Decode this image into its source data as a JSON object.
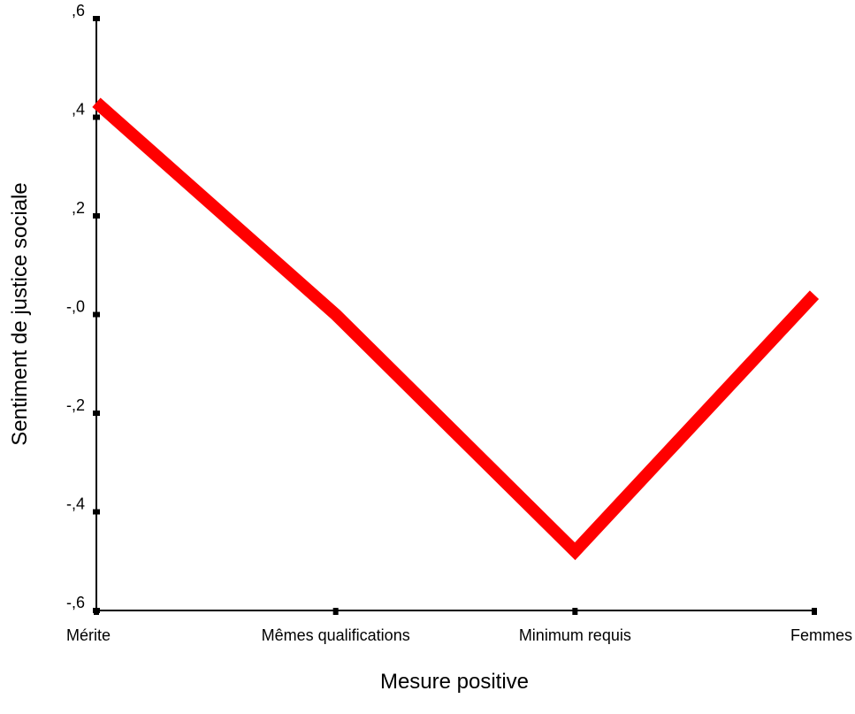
{
  "chart_data": {
    "type": "line",
    "title": "",
    "xlabel": "Mesure positive",
    "ylabel": "Sentiment de justice sociale",
    "categories": [
      "Mérite",
      "Mêmes qualifications",
      "Minimum requis",
      "Femmes"
    ],
    "series": [
      {
        "values": [
          0.43,
          0.0,
          -0.48,
          0.04
        ],
        "color": "#ff0000"
      }
    ],
    "ylim": [
      -0.6,
      0.6
    ],
    "yticks": [
      0.6,
      0.4,
      0.2,
      0.0,
      -0.2,
      -0.4,
      -0.6
    ],
    "ytick_labels": [
      ",6",
      ",4",
      ",2",
      "-,0",
      "-,2",
      "-,4",
      "-,6"
    ],
    "grid": false,
    "legend": "none"
  }
}
